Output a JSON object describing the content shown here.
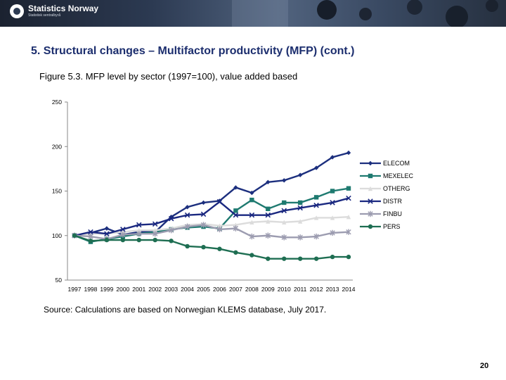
{
  "header": {
    "logo_name": "Statistics Norway",
    "logo_sub": "Statistisk sentralbyrå"
  },
  "slide_title": "5. Structural changes – Multifactor productivity (MFP) (cont.)",
  "figure_title": "Figure 5.3. MFP level by sector (1997=100), value added based",
  "source_text": "Source: Calculations are based on Norwegian KLEMS database, July 2017.",
  "page_number": "20",
  "chart_data": {
    "type": "line",
    "title": "",
    "xlabel": "",
    "ylabel": "",
    "ylim": [
      50,
      250
    ],
    "yticks": [
      50,
      100,
      150,
      200,
      250
    ],
    "ytick_labels": [
      "50",
      "100",
      "150",
      "200",
      "250"
    ],
    "grid": false,
    "legend_placement": "right",
    "x": [
      "1997",
      "1998",
      "1999",
      "2000",
      "2001",
      "2002",
      "2003",
      "2004",
      "2005",
      "2006",
      "2007",
      "2008",
      "2009",
      "2010",
      "2011",
      "2012",
      "2013",
      "2014"
    ],
    "series": [
      {
        "name": "ELECOM",
        "color": "#1c2f7e",
        "marker": "diamond",
        "values": [
          100,
          103,
          108,
          101,
          104,
          104,
          121,
          132,
          137,
          139,
          154,
          148,
          160,
          162,
          168,
          176,
          188,
          193
        ]
      },
      {
        "name": "MEXELEC",
        "color": "#1e7a70",
        "marker": "square",
        "values": [
          100,
          93,
          96,
          99,
          102,
          104,
          107,
          109,
          110,
          108,
          128,
          140,
          130,
          137,
          137,
          143,
          150,
          153
        ]
      },
      {
        "name": "OTHERG",
        "color": "#dcdcdc",
        "marker": "triangle",
        "values": [
          100,
          102,
          102,
          104,
          106,
          106,
          108,
          112,
          113,
          111,
          112,
          115,
          116,
          115,
          116,
          120,
          120,
          121
        ]
      },
      {
        "name": "DISTR",
        "color": "#1a2880",
        "marker": "x",
        "values": [
          100,
          104,
          102,
          107,
          112,
          113,
          119,
          123,
          124,
          138,
          123,
          123,
          123,
          128,
          131,
          134,
          137,
          142
        ]
      },
      {
        "name": "FINBU",
        "color": "#9c9cb0",
        "marker": "star",
        "values": [
          100,
          99,
          96,
          101,
          102,
          102,
          106,
          110,
          112,
          107,
          108,
          99,
          100,
          98,
          98,
          99,
          103,
          104
        ]
      },
      {
        "name": "PERS",
        "color": "#1e6e52",
        "marker": "circle",
        "values": [
          100,
          94,
          95,
          95,
          95,
          95,
          94,
          88,
          87,
          85,
          81,
          78,
          74,
          74,
          74,
          74,
          76,
          76
        ]
      }
    ]
  }
}
